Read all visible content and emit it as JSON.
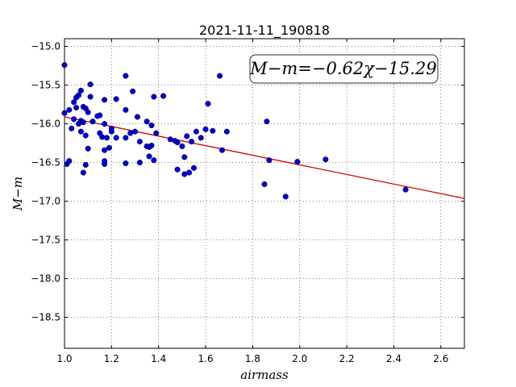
{
  "chart_data": {
    "type": "scatter",
    "title": "2021-11-11_190818",
    "xlabel": "airmass",
    "ylabel": "M−m",
    "xlim": [
      1.0,
      2.7
    ],
    "ylim": [
      -18.9,
      -14.9
    ],
    "x_ticks": [
      1.0,
      1.2,
      1.4,
      1.6,
      1.8,
      2.0,
      2.2,
      2.4,
      2.6
    ],
    "x_tick_labels": [
      "1.0",
      "1.2",
      "1.4",
      "1.6",
      "1.8",
      "2.0",
      "2.2",
      "2.4",
      "2.6"
    ],
    "y_ticks": [
      -15.0,
      -15.5,
      -16.0,
      -16.5,
      -17.0,
      -17.5,
      -18.0,
      -18.5
    ],
    "y_tick_labels": [
      "−15.0",
      "−15.5",
      "−16.0",
      "−16.5",
      "−17.0",
      "−17.5",
      "−18.0",
      "−18.5"
    ],
    "grid": true,
    "annotation": "M−m=−0.62χ−15.29",
    "fit": {
      "slope": -0.62,
      "intercept": -15.29,
      "color": "#cc0000"
    },
    "point_color": "#0000cc",
    "points": [
      [
        1.0,
        -15.24
      ],
      [
        1.0,
        -15.86
      ],
      [
        1.01,
        -16.52
      ],
      [
        1.02,
        -15.82
      ],
      [
        1.02,
        -16.48
      ],
      [
        1.03,
        -16.06
      ],
      [
        1.04,
        -15.72
      ],
      [
        1.04,
        -15.94
      ],
      [
        1.05,
        -15.79
      ],
      [
        1.05,
        -15.66
      ],
      [
        1.06,
        -16.0
      ],
      [
        1.06,
        -15.63
      ],
      [
        1.07,
        -15.96
      ],
      [
        1.07,
        -16.1
      ],
      [
        1.07,
        -15.57
      ],
      [
        1.08,
        -15.78
      ],
      [
        1.08,
        -15.98
      ],
      [
        1.08,
        -16.63
      ],
      [
        1.09,
        -15.8
      ],
      [
        1.09,
        -16.15
      ],
      [
        1.09,
        -16.53
      ],
      [
        1.1,
        -15.85
      ],
      [
        1.1,
        -16.32
      ],
      [
        1.11,
        -15.49
      ],
      [
        1.11,
        -15.65
      ],
      [
        1.12,
        -15.97
      ],
      [
        1.14,
        -15.9
      ],
      [
        1.15,
        -16.12
      ],
      [
        1.15,
        -15.89
      ],
      [
        1.16,
        -16.17
      ],
      [
        1.17,
        -16.0
      ],
      [
        1.17,
        -16.48
      ],
      [
        1.17,
        -16.52
      ],
      [
        1.17,
        -15.69
      ],
      [
        1.17,
        -16.34
      ],
      [
        1.18,
        -16.18
      ],
      [
        1.19,
        -16.31
      ],
      [
        1.2,
        -16.06
      ],
      [
        1.2,
        -16.1
      ],
      [
        1.22,
        -15.68
      ],
      [
        1.22,
        -16.18
      ],
      [
        1.26,
        -15.38
      ],
      [
        1.26,
        -15.82
      ],
      [
        1.26,
        -16.18
      ],
      [
        1.26,
        -16.51
      ],
      [
        1.28,
        -16.12
      ],
      [
        1.29,
        -15.58
      ],
      [
        1.3,
        -16.1
      ],
      [
        1.31,
        -15.91
      ],
      [
        1.32,
        -16.5
      ],
      [
        1.32,
        -16.23
      ],
      [
        1.35,
        -15.97
      ],
      [
        1.35,
        -16.29
      ],
      [
        1.36,
        -16.3
      ],
      [
        1.36,
        -16.42
      ],
      [
        1.37,
        -16.02
      ],
      [
        1.37,
        -16.28
      ],
      [
        1.38,
        -15.65
      ],
      [
        1.38,
        -16.47
      ],
      [
        1.39,
        -16.12
      ],
      [
        1.42,
        -15.64
      ],
      [
        1.45,
        -16.2
      ],
      [
        1.47,
        -16.22
      ],
      [
        1.48,
        -16.24
      ],
      [
        1.48,
        -16.59
      ],
      [
        1.5,
        -16.29
      ],
      [
        1.51,
        -16.43
      ],
      [
        1.51,
        -16.65
      ],
      [
        1.52,
        -16.16
      ],
      [
        1.53,
        -16.63
      ],
      [
        1.54,
        -16.23
      ],
      [
        1.55,
        -16.57
      ],
      [
        1.56,
        -16.1
      ],
      [
        1.58,
        -16.18
      ],
      [
        1.6,
        -16.07
      ],
      [
        1.61,
        -15.74
      ],
      [
        1.63,
        -16.09
      ],
      [
        1.66,
        -15.38
      ],
      [
        1.67,
        -16.34
      ],
      [
        1.69,
        -16.1
      ],
      [
        1.85,
        -16.78
      ],
      [
        1.86,
        -15.97
      ],
      [
        1.87,
        -16.47
      ],
      [
        1.94,
        -16.94
      ],
      [
        1.99,
        -16.49
      ],
      [
        2.11,
        -16.46
      ],
      [
        2.45,
        -16.85
      ]
    ]
  }
}
